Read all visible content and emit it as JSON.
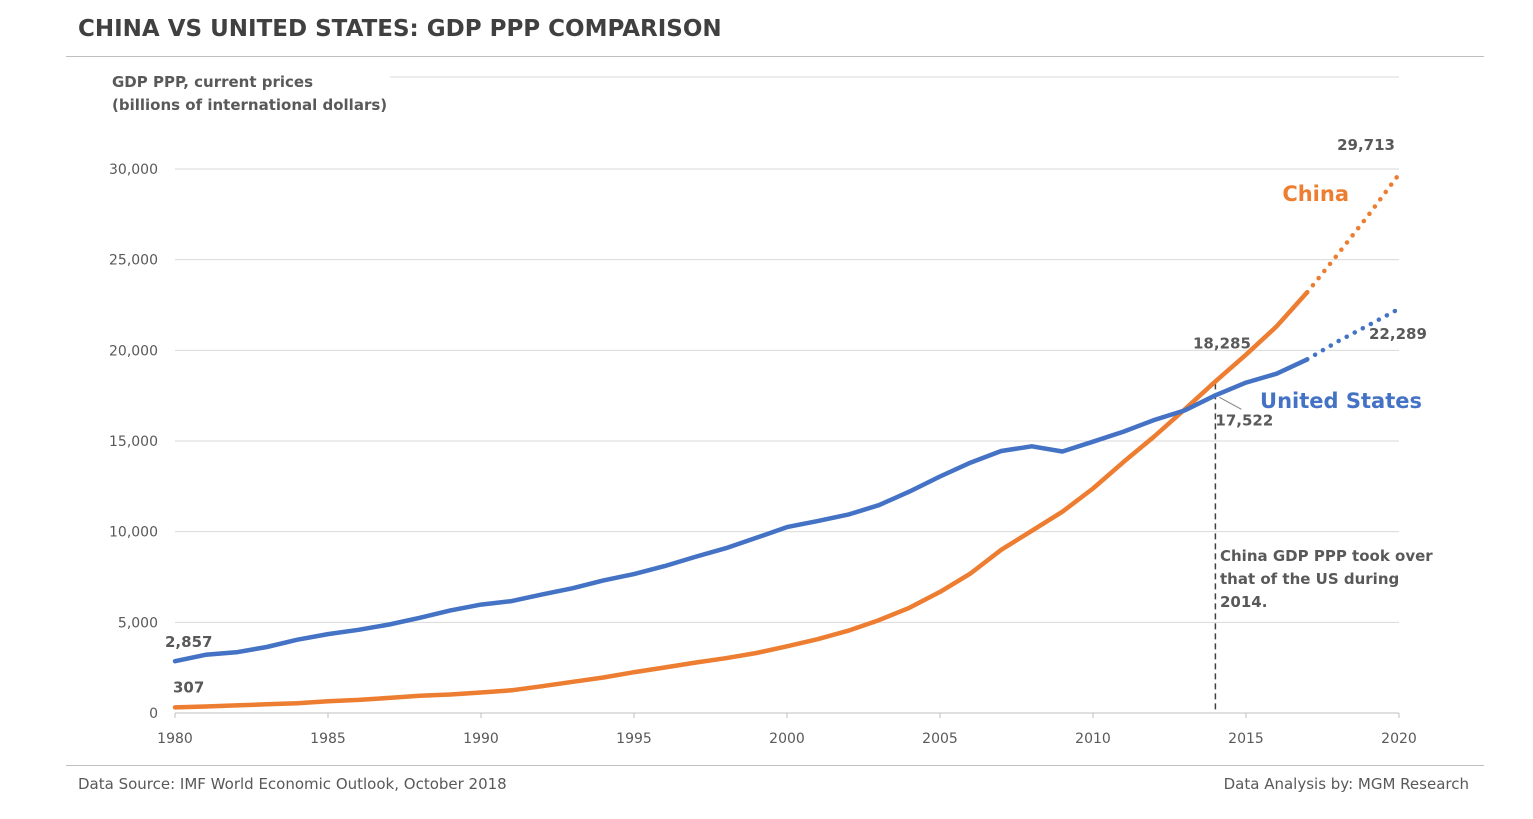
{
  "title": "CHINA VS UNITED STATES: GDP PPP COMPARISON",
  "footer": {
    "source": "Data Source: IMF World Economic Outlook, October 2018",
    "analysis": "Data Analysis by: MGM Research"
  },
  "colors": {
    "china": "#ed7d31",
    "us": "#4472c4",
    "text": "#595959",
    "grid": "#d9d9d9"
  },
  "chart_data": {
    "type": "line",
    "ylabel_lines": [
      "GDP PPP, current prices",
      "(billions of international dollars)"
    ],
    "ylim": [
      0,
      30000
    ],
    "yticks": [
      0,
      5000,
      10000,
      15000,
      20000,
      25000,
      30000
    ],
    "ytick_labels": [
      "0",
      "5,000",
      "10,000",
      "15,000",
      "20,000",
      "25,000",
      "30,000"
    ],
    "xlim": [
      1980,
      2020
    ],
    "xticks": [
      1980,
      1985,
      1990,
      1995,
      2000,
      2005,
      2010,
      2015,
      2020
    ],
    "xtick_labels": [
      "1980",
      "1985",
      "1990",
      "1995",
      "2000",
      "2005",
      "2010",
      "2015",
      "2020"
    ],
    "grid": true,
    "series": [
      {
        "name": "China",
        "key": "china",
        "actual_end_year": 2017,
        "points": [
          [
            1980,
            307
          ],
          [
            1981,
            360
          ],
          [
            1982,
            420
          ],
          [
            1983,
            480
          ],
          [
            1984,
            540
          ],
          [
            1985,
            650
          ],
          [
            1986,
            720
          ],
          [
            1987,
            830
          ],
          [
            1988,
            950
          ],
          [
            1989,
            1020
          ],
          [
            1990,
            1130
          ],
          [
            1991,
            1250
          ],
          [
            1992,
            1480
          ],
          [
            1993,
            1720
          ],
          [
            1994,
            1960
          ],
          [
            1995,
            2250
          ],
          [
            1996,
            2510
          ],
          [
            1997,
            2780
          ],
          [
            1998,
            3020
          ],
          [
            1999,
            3310
          ],
          [
            2000,
            3680
          ],
          [
            2001,
            4070
          ],
          [
            2002,
            4540
          ],
          [
            2003,
            5120
          ],
          [
            2004,
            5800
          ],
          [
            2005,
            6680
          ],
          [
            2006,
            7700
          ],
          [
            2007,
            9000
          ],
          [
            2008,
            10050
          ],
          [
            2009,
            11100
          ],
          [
            2010,
            12380
          ],
          [
            2011,
            13850
          ],
          [
            2012,
            15250
          ],
          [
            2013,
            16750
          ],
          [
            2014,
            18285
          ],
          [
            2015,
            19760
          ],
          [
            2016,
            21320
          ],
          [
            2017,
            23200
          ],
          [
            2018,
            25300
          ],
          [
            2019,
            27450
          ],
          [
            2020,
            29713
          ]
        ]
      },
      {
        "name": "United States",
        "key": "us",
        "actual_end_year": 2017,
        "points": [
          [
            1980,
            2857
          ],
          [
            1981,
            3210
          ],
          [
            1982,
            3345
          ],
          [
            1983,
            3640
          ],
          [
            1984,
            4040
          ],
          [
            1985,
            4350
          ],
          [
            1986,
            4590
          ],
          [
            1987,
            4880
          ],
          [
            1988,
            5250
          ],
          [
            1989,
            5660
          ],
          [
            1990,
            5980
          ],
          [
            1991,
            6170
          ],
          [
            1992,
            6540
          ],
          [
            1993,
            6880
          ],
          [
            1994,
            7310
          ],
          [
            1995,
            7660
          ],
          [
            1996,
            8100
          ],
          [
            1997,
            8610
          ],
          [
            1998,
            9090
          ],
          [
            1999,
            9660
          ],
          [
            2000,
            10250
          ],
          [
            2001,
            10580
          ],
          [
            2002,
            10940
          ],
          [
            2003,
            11460
          ],
          [
            2004,
            12210
          ],
          [
            2005,
            13040
          ],
          [
            2006,
            13810
          ],
          [
            2007,
            14450
          ],
          [
            2008,
            14710
          ],
          [
            2009,
            14420
          ],
          [
            2010,
            14960
          ],
          [
            2011,
            15520
          ],
          [
            2012,
            16160
          ],
          [
            2013,
            16690
          ],
          [
            2014,
            17522
          ],
          [
            2015,
            18220
          ],
          [
            2016,
            18710
          ],
          [
            2017,
            19500
          ],
          [
            2018,
            20490
          ],
          [
            2019,
            21380
          ],
          [
            2020,
            22289
          ]
        ]
      }
    ],
    "data_labels": [
      {
        "text": "2,857",
        "series": "us",
        "year": 1980
      },
      {
        "text": "307",
        "series": "china",
        "year": 1980
      },
      {
        "text": "29,713",
        "series": "china",
        "year": 2020
      },
      {
        "text": "22,289",
        "series": "us",
        "year": 2020
      },
      {
        "text": "18,285",
        "series": "china",
        "year": 2014
      },
      {
        "text": "17,522",
        "series": "us",
        "year": 2014
      }
    ],
    "crossover_year": 2014,
    "annotation_lines": [
      "China GDP PPP took over",
      "that of the US during",
      "2014."
    ]
  }
}
